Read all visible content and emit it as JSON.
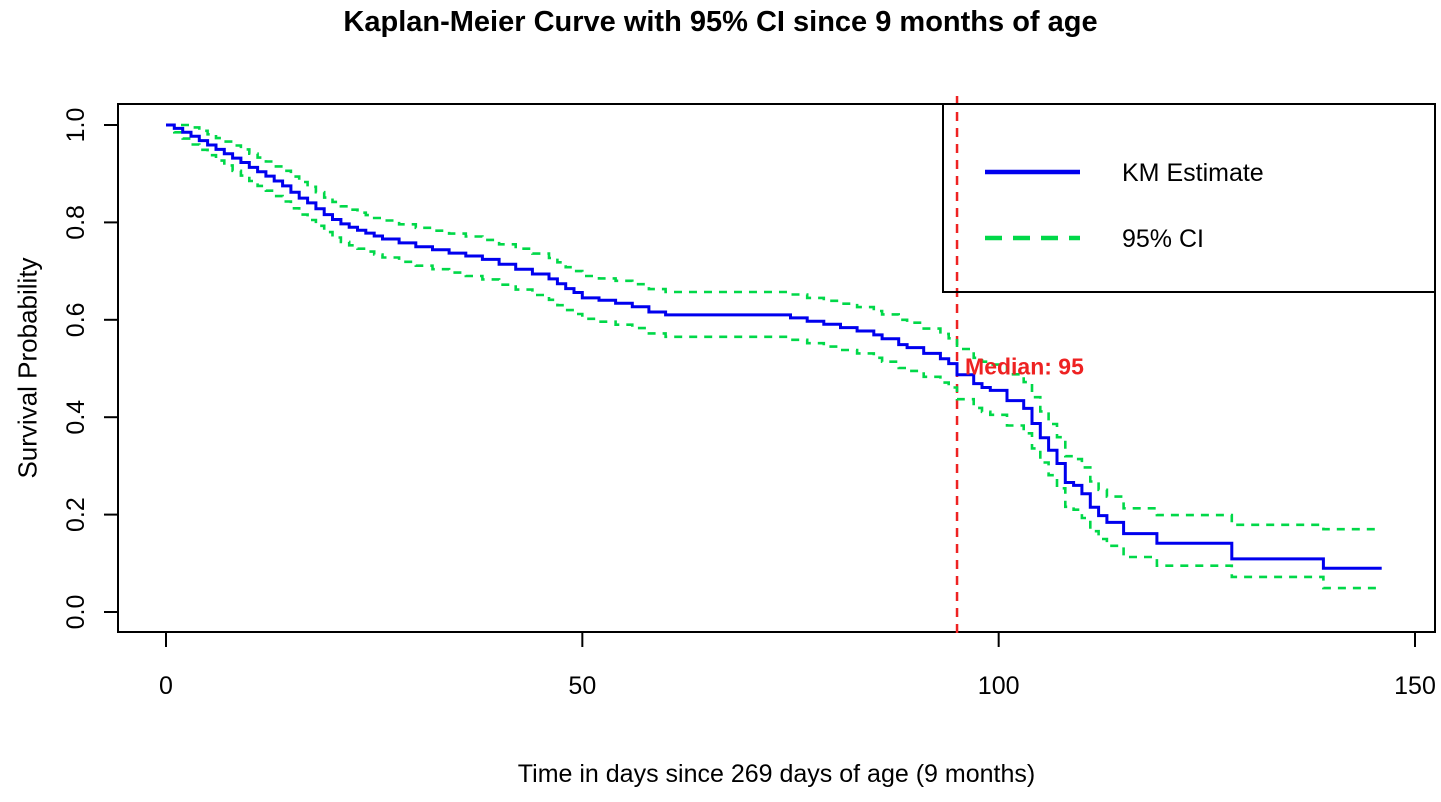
{
  "chart_data": {
    "type": "line",
    "subtype": "kaplan-meier-step",
    "title": "Kaplan-Meier Curve with 95% CI since 9 months of age",
    "xlabel": "Time in days since 269 days of age (9 months)",
    "ylabel": "Survival Probability",
    "x_ticks": [
      0,
      50,
      100,
      150
    ],
    "y_ticks": [
      1.0,
      0.8,
      0.6,
      0.4,
      0.2,
      0.0
    ],
    "y_tick_labels": [
      "1.0",
      "0.8",
      "0.6",
      "0.4",
      "0.2",
      "0.0"
    ],
    "xlim": [
      -6,
      156
    ],
    "ylim": [
      -0.04,
      1.04
    ],
    "grid": false,
    "legend_position": "top-right",
    "median": {
      "x": 95,
      "label": "Median: 95"
    },
    "series": [
      {
        "name": "KM Estimate",
        "style": "solid",
        "color": "#0000EE",
        "points": [
          [
            0,
            1.0
          ],
          [
            1,
            0.993
          ],
          [
            2,
            0.985
          ],
          [
            3,
            0.977
          ],
          [
            4,
            0.968
          ],
          [
            5,
            0.959
          ],
          [
            6,
            0.95
          ],
          [
            7,
            0.941
          ],
          [
            8,
            0.932
          ],
          [
            9,
            0.923
          ],
          [
            10,
            0.913
          ],
          [
            11,
            0.904
          ],
          [
            12,
            0.895
          ],
          [
            13,
            0.885
          ],
          [
            14,
            0.875
          ],
          [
            15,
            0.862
          ],
          [
            16,
            0.85
          ],
          [
            17,
            0.84
          ],
          [
            18,
            0.828
          ],
          [
            19,
            0.816
          ],
          [
            20,
            0.806
          ],
          [
            21,
            0.797
          ],
          [
            22,
            0.79
          ],
          [
            23,
            0.784
          ],
          [
            24,
            0.778
          ],
          [
            25,
            0.772
          ],
          [
            26,
            0.766
          ],
          [
            28,
            0.758
          ],
          [
            30,
            0.75
          ],
          [
            32,
            0.744
          ],
          [
            34,
            0.737
          ],
          [
            36,
            0.731
          ],
          [
            38,
            0.724
          ],
          [
            40,
            0.714
          ],
          [
            42,
            0.704
          ],
          [
            44,
            0.694
          ],
          [
            46,
            0.684
          ],
          [
            47,
            0.674
          ],
          [
            48,
            0.664
          ],
          [
            49,
            0.656
          ],
          [
            50,
            0.645
          ],
          [
            52,
            0.64
          ],
          [
            54,
            0.634
          ],
          [
            56,
            0.627
          ],
          [
            58,
            0.616
          ],
          [
            60,
            0.61
          ],
          [
            75,
            0.604
          ],
          [
            77,
            0.597
          ],
          [
            79,
            0.591
          ],
          [
            81,
            0.584
          ],
          [
            83,
            0.577
          ],
          [
            85,
            0.569
          ],
          [
            86,
            0.561
          ],
          [
            88,
            0.549
          ],
          [
            89,
            0.543
          ],
          [
            91,
            0.531
          ],
          [
            93,
            0.52
          ],
          [
            94,
            0.51
          ],
          [
            95,
            0.487
          ],
          [
            97,
            0.469
          ],
          [
            98,
            0.461
          ],
          [
            99,
            0.455
          ],
          [
            101,
            0.434
          ],
          [
            103,
            0.418
          ],
          [
            104,
            0.387
          ],
          [
            105,
            0.358
          ],
          [
            106,
            0.332
          ],
          [
            107,
            0.305
          ],
          [
            108,
            0.266
          ],
          [
            109,
            0.26
          ],
          [
            110,
            0.243
          ],
          [
            111,
            0.215
          ],
          [
            112,
            0.198
          ],
          [
            113,
            0.184
          ],
          [
            115,
            0.161
          ],
          [
            119,
            0.141
          ],
          [
            128,
            0.109
          ],
          [
            139,
            0.09
          ],
          [
            146,
            0.09
          ]
        ]
      },
      {
        "name": "95% CI upper",
        "style": "dashed",
        "color": "#00D848",
        "points": [
          [
            0,
            1.0
          ],
          [
            2,
            1.0
          ],
          [
            3,
            0.995
          ],
          [
            4,
            0.988
          ],
          [
            5,
            0.981
          ],
          [
            6,
            0.973
          ],
          [
            7,
            0.966
          ],
          [
            8,
            0.958
          ],
          [
            9,
            0.95
          ],
          [
            10,
            0.941
          ],
          [
            11,
            0.933
          ],
          [
            12,
            0.925
          ],
          [
            13,
            0.915
          ],
          [
            14,
            0.906
          ],
          [
            15,
            0.894
          ],
          [
            16,
            0.883
          ],
          [
            17,
            0.873
          ],
          [
            18,
            0.862
          ],
          [
            19,
            0.851
          ],
          [
            20,
            0.842
          ],
          [
            21,
            0.833
          ],
          [
            22,
            0.826
          ],
          [
            23,
            0.82
          ],
          [
            24,
            0.815
          ],
          [
            25,
            0.809
          ],
          [
            26,
            0.804
          ],
          [
            28,
            0.796
          ],
          [
            30,
            0.789
          ],
          [
            32,
            0.783
          ],
          [
            34,
            0.777
          ],
          [
            36,
            0.771
          ],
          [
            38,
            0.764
          ],
          [
            40,
            0.755
          ],
          [
            42,
            0.746
          ],
          [
            44,
            0.736
          ],
          [
            46,
            0.727
          ],
          [
            47,
            0.718
          ],
          [
            48,
            0.708
          ],
          [
            49,
            0.7
          ],
          [
            50,
            0.69
          ],
          [
            52,
            0.685
          ],
          [
            54,
            0.68
          ],
          [
            56,
            0.673
          ],
          [
            58,
            0.663
          ],
          [
            60,
            0.657
          ],
          [
            75,
            0.652
          ],
          [
            77,
            0.645
          ],
          [
            79,
            0.639
          ],
          [
            81,
            0.633
          ],
          [
            83,
            0.626
          ],
          [
            85,
            0.618
          ],
          [
            86,
            0.611
          ],
          [
            88,
            0.6
          ],
          [
            89,
            0.594
          ],
          [
            91,
            0.582
          ],
          [
            93,
            0.571
          ],
          [
            94,
            0.562
          ],
          [
            95,
            0.54
          ],
          [
            97,
            0.522
          ],
          [
            98,
            0.514
          ],
          [
            99,
            0.508
          ],
          [
            101,
            0.488
          ],
          [
            103,
            0.472
          ],
          [
            104,
            0.441
          ],
          [
            105,
            0.412
          ],
          [
            106,
            0.386
          ],
          [
            107,
            0.359
          ],
          [
            108,
            0.32
          ],
          [
            109,
            0.314
          ],
          [
            110,
            0.297
          ],
          [
            111,
            0.268
          ],
          [
            112,
            0.251
          ],
          [
            113,
            0.237
          ],
          [
            115,
            0.213
          ],
          [
            119,
            0.199
          ],
          [
            128,
            0.179
          ],
          [
            139,
            0.17
          ],
          [
            146,
            0.17
          ]
        ]
      },
      {
        "name": "95% CI lower",
        "style": "dashed",
        "color": "#00D848",
        "points": [
          [
            0,
            1.0
          ],
          [
            1,
            0.985
          ],
          [
            2,
            0.972
          ],
          [
            3,
            0.96
          ],
          [
            4,
            0.949
          ],
          [
            5,
            0.938
          ],
          [
            6,
            0.927
          ],
          [
            7,
            0.917
          ],
          [
            8,
            0.906
          ],
          [
            9,
            0.896
          ],
          [
            10,
            0.885
          ],
          [
            11,
            0.875
          ],
          [
            12,
            0.865
          ],
          [
            13,
            0.854
          ],
          [
            14,
            0.843
          ],
          [
            15,
            0.829
          ],
          [
            16,
            0.816
          ],
          [
            17,
            0.805
          ],
          [
            18,
            0.793
          ],
          [
            19,
            0.78
          ],
          [
            20,
            0.769
          ],
          [
            21,
            0.76
          ],
          [
            22,
            0.753
          ],
          [
            23,
            0.746
          ],
          [
            24,
            0.74
          ],
          [
            25,
            0.734
          ],
          [
            26,
            0.728
          ],
          [
            28,
            0.719
          ],
          [
            30,
            0.711
          ],
          [
            32,
            0.704
          ],
          [
            34,
            0.697
          ],
          [
            36,
            0.69
          ],
          [
            38,
            0.683
          ],
          [
            40,
            0.672
          ],
          [
            42,
            0.662
          ],
          [
            44,
            0.651
          ],
          [
            46,
            0.641
          ],
          [
            47,
            0.63
          ],
          [
            48,
            0.62
          ],
          [
            49,
            0.612
          ],
          [
            50,
            0.602
          ],
          [
            52,
            0.596
          ],
          [
            54,
            0.59
          ],
          [
            56,
            0.583
          ],
          [
            58,
            0.572
          ],
          [
            60,
            0.565
          ],
          [
            75,
            0.559
          ],
          [
            77,
            0.552
          ],
          [
            79,
            0.545
          ],
          [
            81,
            0.538
          ],
          [
            83,
            0.531
          ],
          [
            85,
            0.522
          ],
          [
            86,
            0.514
          ],
          [
            88,
            0.501
          ],
          [
            89,
            0.495
          ],
          [
            91,
            0.483
          ],
          [
            93,
            0.471
          ],
          [
            94,
            0.461
          ],
          [
            95,
            0.437
          ],
          [
            97,
            0.419
          ],
          [
            98,
            0.411
          ],
          [
            99,
            0.405
          ],
          [
            101,
            0.383
          ],
          [
            103,
            0.367
          ],
          [
            104,
            0.336
          ],
          [
            105,
            0.307
          ],
          [
            106,
            0.281
          ],
          [
            107,
            0.254
          ],
          [
            108,
            0.216
          ],
          [
            109,
            0.21
          ],
          [
            110,
            0.193
          ],
          [
            111,
            0.166
          ],
          [
            112,
            0.15
          ],
          [
            113,
            0.136
          ],
          [
            115,
            0.113
          ],
          [
            119,
            0.095
          ],
          [
            128,
            0.072
          ],
          [
            139,
            0.049
          ],
          [
            146,
            0.049
          ]
        ]
      }
    ]
  },
  "legend": {
    "km_label": "KM Estimate",
    "ci_label": "95% CI"
  },
  "colors": {
    "km_line": "#0000EE",
    "ci_line": "#00D848",
    "median_line": "#EE2222",
    "median_text": "#EE2222",
    "frame": "#000000",
    "text": "#000000",
    "background": "#FFFFFF"
  }
}
